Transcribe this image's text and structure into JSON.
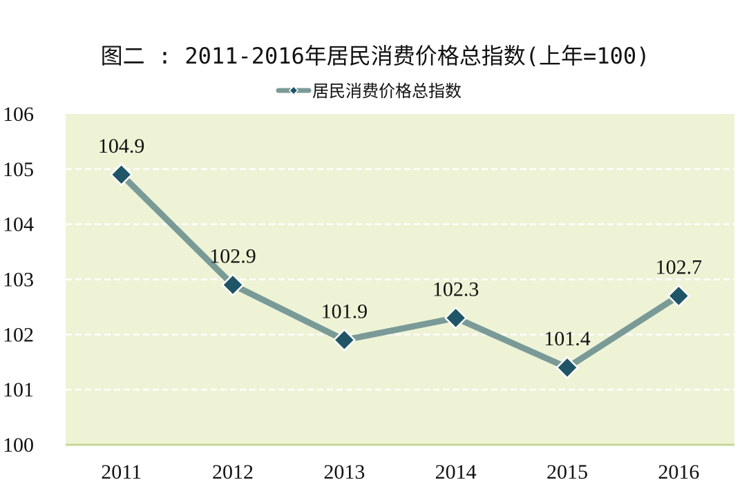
{
  "chart_data": {
    "type": "line",
    "title": "图二 : 2011-2016年居民消费价格总指数(上年=100)",
    "categories": [
      "2011",
      "2012",
      "2013",
      "2014",
      "2015",
      "2016"
    ],
    "series": [
      {
        "name": "居民消费价格总指数",
        "values": [
          104.9,
          102.9,
          101.9,
          102.3,
          101.4,
          102.7
        ],
        "data_labels": [
          "104.9",
          "102.9",
          "101.9",
          "102.3",
          "101.4",
          "102.7"
        ]
      }
    ],
    "ylim": [
      100,
      106
    ],
    "yticks": [
      100,
      101,
      102,
      103,
      104,
      105,
      106
    ],
    "ytick_labels": [
      "100",
      "101",
      "102",
      "103",
      "104",
      "105",
      "106"
    ],
    "xlabel": "",
    "ylabel": "",
    "grid": true,
    "legend_position": "top"
  },
  "colors": {
    "plot_background": "#eef3d6",
    "line": "#7a9a97",
    "marker_fill": "#1f5566",
    "marker_stroke": "#ffffff",
    "gridline": "#ffffff",
    "baseline": "#c5d796",
    "text": "#111111"
  },
  "icons": {
    "legend_marker": "diamond-line-icon"
  }
}
